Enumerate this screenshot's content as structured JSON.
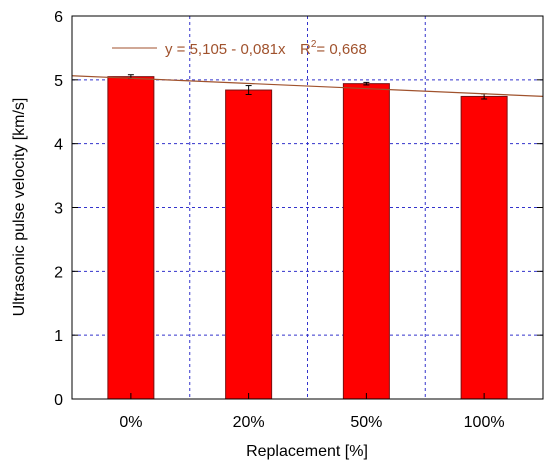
{
  "chart_data": {
    "type": "bar",
    "categories": [
      "0%",
      "20%",
      "50%",
      "100%"
    ],
    "values": [
      5.05,
      4.84,
      4.94,
      4.74
    ],
    "errors": [
      0.03,
      0.07,
      0.02,
      0.04
    ],
    "xlabel": "Replacement [%]",
    "ylabel": "Ultrasonic pulse velocity [km/s]",
    "ylim": [
      0,
      6
    ],
    "yticks": [
      0,
      1,
      2,
      3,
      4,
      5,
      6
    ],
    "grid": true,
    "bar_color": "#ff0000",
    "bar_edge_color": "#7a1010",
    "grid_color": "#3333cc",
    "trendline": {
      "color": "#a0522d",
      "intercept": 5.105,
      "slope": -0.081,
      "x_at_categories": [
        1,
        2,
        3,
        4
      ],
      "legend_text": "y = 5,105 - 0,081x",
      "r2_prefix": "R",
      "r2_exponent": "2",
      "r2_value": "= 0,668",
      "legend_position": "top-left"
    }
  }
}
